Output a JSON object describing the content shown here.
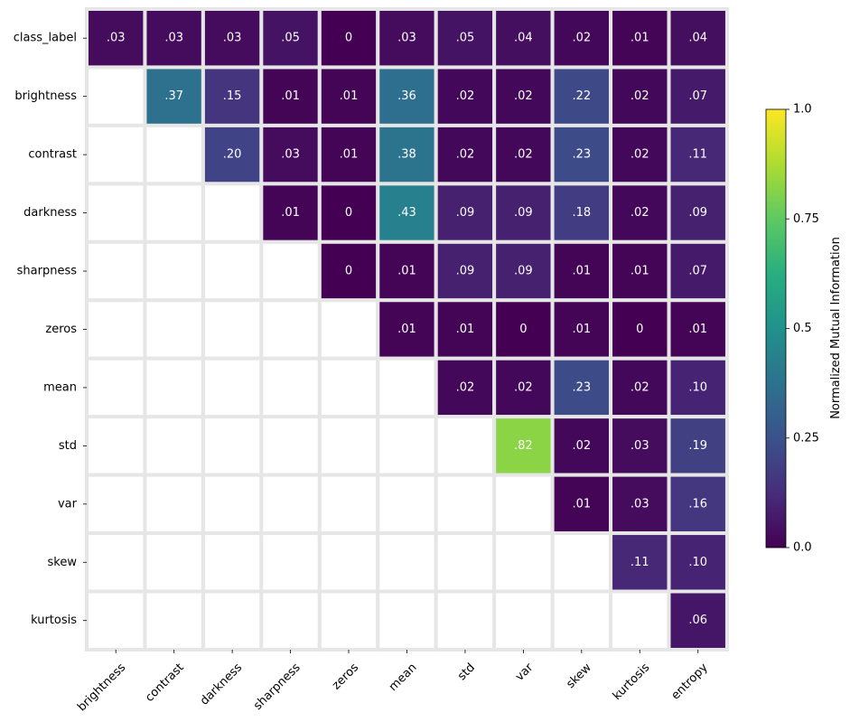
{
  "chart_data": {
    "type": "heatmap",
    "title": "",
    "xlabel": "",
    "ylabel": "",
    "x_categories": [
      "brightness",
      "contrast",
      "darkness",
      "sharpness",
      "zeros",
      "mean",
      "std",
      "var",
      "skew",
      "kurtosis",
      "entropy"
    ],
    "y_categories": [
      "class_label",
      "brightness",
      "contrast",
      "darkness",
      "sharpness",
      "zeros",
      "mean",
      "std",
      "var",
      "skew",
      "kurtosis"
    ],
    "values": [
      [
        0.03,
        0.03,
        0.03,
        0.05,
        0,
        0.03,
        0.05,
        0.04,
        0.02,
        0.01,
        0.04
      ],
      [
        null,
        0.37,
        0.15,
        0.01,
        0.01,
        0.36,
        0.02,
        0.02,
        0.22,
        0.02,
        0.07
      ],
      [
        null,
        null,
        0.2,
        0.03,
        0.01,
        0.38,
        0.02,
        0.02,
        0.23,
        0.02,
        0.11
      ],
      [
        null,
        null,
        null,
        0.01,
        0,
        0.43,
        0.09,
        0.09,
        0.18,
        0.02,
        0.09
      ],
      [
        null,
        null,
        null,
        null,
        0,
        0.01,
        0.09,
        0.09,
        0.01,
        0.01,
        0.07
      ],
      [
        null,
        null,
        null,
        null,
        null,
        0.01,
        0.01,
        0,
        0.01,
        0,
        0.01
      ],
      [
        null,
        null,
        null,
        null,
        null,
        null,
        0.02,
        0.02,
        0.23,
        0.02,
        0.1
      ],
      [
        null,
        null,
        null,
        null,
        null,
        null,
        null,
        0.82,
        0.02,
        0.03,
        0.19
      ],
      [
        null,
        null,
        null,
        null,
        null,
        null,
        null,
        null,
        0.01,
        0.03,
        0.16
      ],
      [
        null,
        null,
        null,
        null,
        null,
        null,
        null,
        null,
        null,
        0.11,
        0.1
      ],
      [
        null,
        null,
        null,
        null,
        null,
        null,
        null,
        null,
        null,
        null,
        0.06
      ]
    ],
    "labels": [
      [
        ".03",
        ".03",
        ".03",
        ".05",
        "0",
        ".03",
        ".05",
        ".04",
        ".02",
        ".01",
        ".04"
      ],
      [
        null,
        ".37",
        ".15",
        ".01",
        ".01",
        ".36",
        ".02",
        ".02",
        ".22",
        ".02",
        ".07"
      ],
      [
        null,
        null,
        ".20",
        ".03",
        ".01",
        ".38",
        ".02",
        ".02",
        ".23",
        ".02",
        ".11"
      ],
      [
        null,
        null,
        null,
        ".01",
        "0",
        ".43",
        ".09",
        ".09",
        ".18",
        ".02",
        ".09"
      ],
      [
        null,
        null,
        null,
        null,
        "0",
        ".01",
        ".09",
        ".09",
        ".01",
        ".01",
        ".07"
      ],
      [
        null,
        null,
        null,
        null,
        null,
        ".01",
        ".01",
        "0",
        ".01",
        "0",
        ".01"
      ],
      [
        null,
        null,
        null,
        null,
        null,
        null,
        ".02",
        ".02",
        ".23",
        ".02",
        ".10"
      ],
      [
        null,
        null,
        null,
        null,
        null,
        null,
        null,
        ".82",
        ".02",
        ".03",
        ".19"
      ],
      [
        null,
        null,
        null,
        null,
        null,
        null,
        null,
        null,
        ".01",
        ".03",
        ".16"
      ],
      [
        null,
        null,
        null,
        null,
        null,
        null,
        null,
        null,
        null,
        ".11",
        ".10"
      ],
      [
        null,
        null,
        null,
        null,
        null,
        null,
        null,
        null,
        null,
        null,
        ".06"
      ]
    ],
    "colormap": "viridis",
    "vmin": 0,
    "vmax": 1,
    "colorbar": {
      "label": "Normalized Mutual Information",
      "ticks": [
        0,
        0.25,
        0.5,
        0.75,
        1.0
      ],
      "tick_labels": [
        "0.0",
        "0.25",
        "0.5",
        "0.75",
        "1.0"
      ]
    },
    "grid_color": "#e6e6e6",
    "cell_text_color": "#ffffff"
  }
}
